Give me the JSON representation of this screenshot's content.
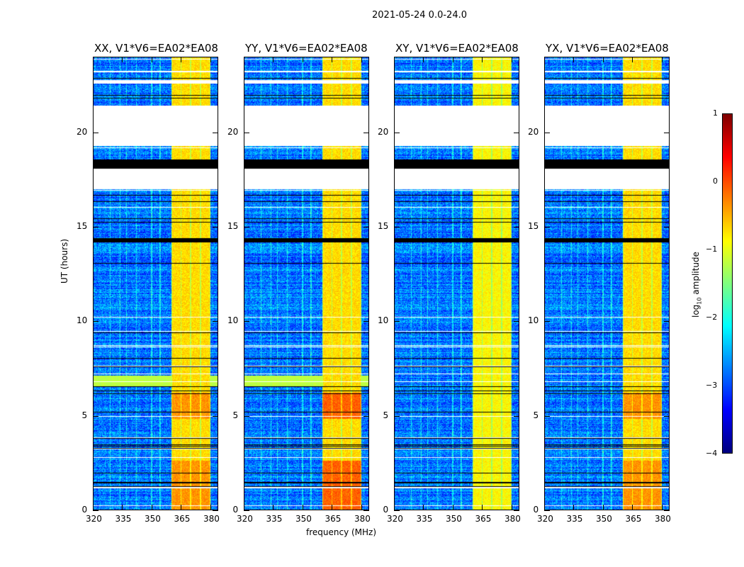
{
  "chart_data": {
    "type": "heatmap",
    "title": "2021-05-24 0.0-24.0",
    "xlabel": "frequency (MHz)",
    "ylabel": "UT (hours)",
    "xlim": [
      320,
      384
    ],
    "ylim": [
      0,
      24
    ],
    "xticks": [
      "320",
      "335",
      "350",
      "365",
      "380"
    ],
    "yticks": [
      "0",
      "5",
      "10",
      "15",
      "20"
    ],
    "panels": [
      {
        "title": "XX, V1*V6=EA02*EA08",
        "green_block": true
      },
      {
        "title": "YY, V1*V6=EA02*EA08",
        "green_block": true
      },
      {
        "title": "XY, V1*V6=EA02*EA08",
        "green_block": false
      },
      {
        "title": "YX, V1*V6=EA02*EA08",
        "green_block": false
      }
    ],
    "rfi_band_mhz": [
      360,
      380
    ],
    "background_level_log10": -2.8,
    "rfi_level_log10": -0.7,
    "no_data_hours": [
      [
        17.0,
        18.1
      ],
      [
        19.3,
        21.4
      ],
      [
        23.2,
        23.3
      ],
      [
        22.6,
        22.8
      ]
    ],
    "flagged_hours": [
      [
        18.1,
        18.6
      ],
      [
        14.2,
        14.4
      ]
    ],
    "colorbar": {
      "label": "log10 amplitude",
      "label_main": "log",
      "label_sub": "10",
      "label_rest": " amplitude",
      "min": -4,
      "max": 1,
      "ticks": [
        "1",
        "0",
        "−1",
        "−2",
        "−3",
        "−4"
      ],
      "colormap": "jet"
    }
  }
}
